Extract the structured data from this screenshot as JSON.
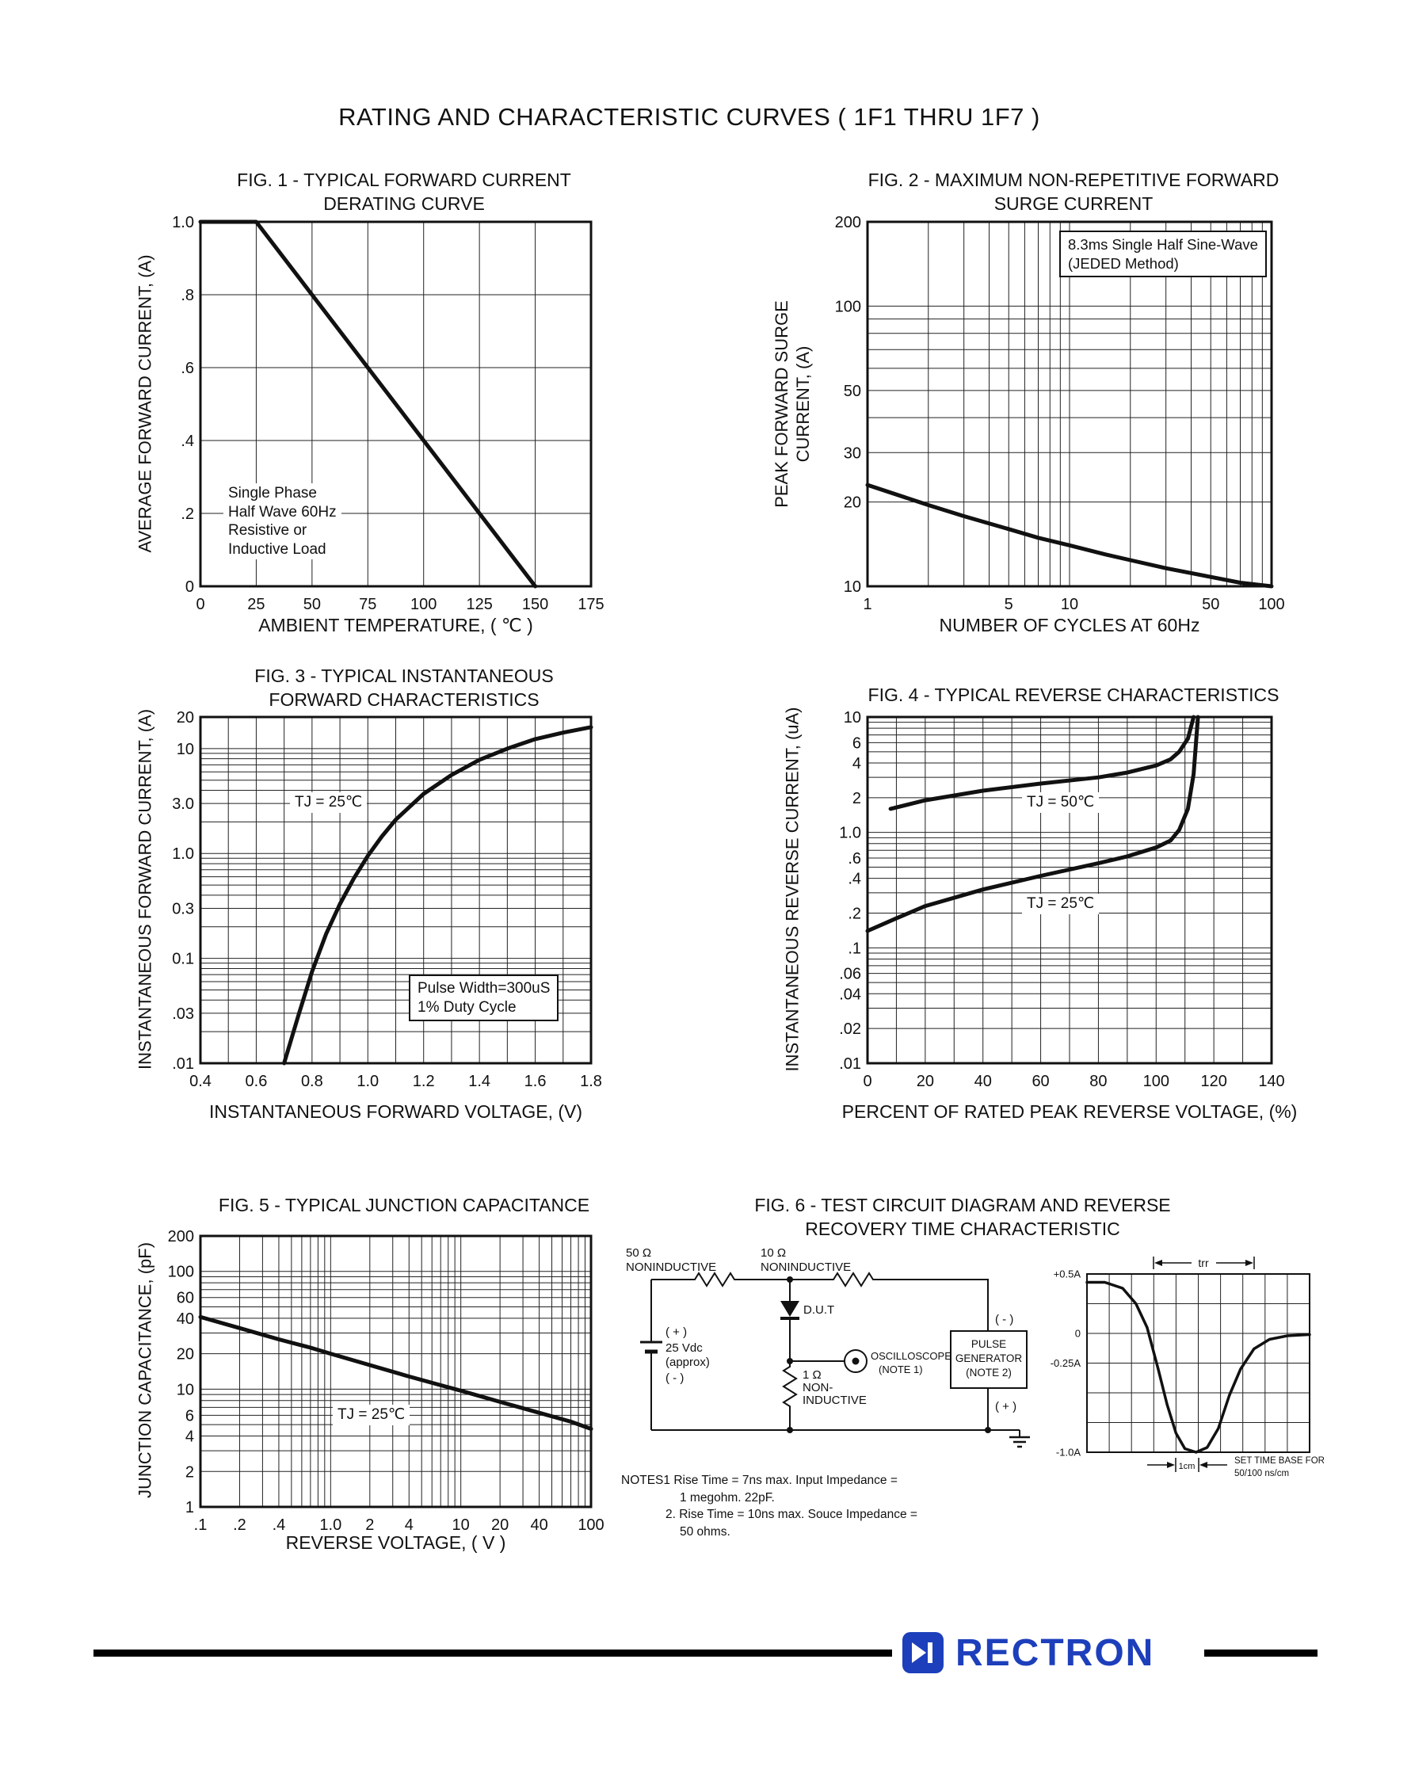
{
  "page": {
    "title": "RATING AND CHARACTERISTIC CURVES ( 1F1 THRU 1F7 )"
  },
  "footer": {
    "brand": "RECTRON",
    "brand_color": "#1d3fbb",
    "bar_color": "#000000",
    "logo_icon": "diode-mark"
  },
  "chart_data": [
    {
      "id": "fig1",
      "type": "line",
      "title": "FIG. 1 - TYPICAL FORWARD CURRENT\nDERATING CURVE",
      "xlabel": "AMBIENT TEMPERATURE, ( ℃ )",
      "ylabel": "AVERAGE FORWARD CURRENT, (A)",
      "x_scale": "linear",
      "y_scale": "linear",
      "xlim": [
        0,
        175
      ],
      "ylim": [
        0,
        1.0
      ],
      "x_grid_step": 25,
      "y_grid_step": 0.2,
      "x_ticks": [
        [
          0,
          "0"
        ],
        [
          25,
          "25"
        ],
        [
          50,
          "50"
        ],
        [
          75,
          "75"
        ],
        [
          100,
          "100"
        ],
        [
          125,
          "125"
        ],
        [
          150,
          "150"
        ],
        [
          175,
          "175"
        ]
      ],
      "y_ticks": [
        [
          1.0,
          "1.0"
        ],
        [
          0.8,
          ".8"
        ],
        [
          0.6,
          ".6"
        ],
        [
          0.4,
          ".4"
        ],
        [
          0.2,
          ".2"
        ],
        [
          0,
          "0"
        ]
      ],
      "series": [
        {
          "name": "average forward current derating",
          "points": [
            [
              0,
              1.0
            ],
            [
              25,
              1.0
            ],
            [
              150,
              0
            ]
          ]
        }
      ],
      "annotations": {
        "load_note": "Single Phase\nHalf Wave 60Hz\nResistive or\nInductive Load"
      }
    },
    {
      "id": "fig2",
      "type": "line",
      "title": "FIG. 2 - MAXIMUM NON-REPETITIVE FORWARD\nSURGE CURRENT",
      "xlabel": "NUMBER OF CYCLES AT 60Hz",
      "ylabel": "PEAK FORWARD SURGE\nCURRENT, (A)",
      "x_scale": "log",
      "y_scale": "log",
      "xlim": [
        1,
        100
      ],
      "ylim": [
        10,
        200
      ],
      "x_ticks": [
        [
          1,
          "1"
        ],
        [
          5,
          "5"
        ],
        [
          10,
          "10"
        ],
        [
          50,
          "50"
        ],
        [
          100,
          "100"
        ]
      ],
      "y_ticks": [
        [
          200,
          "200"
        ],
        [
          100,
          "100"
        ],
        [
          50,
          "50"
        ],
        [
          30,
          "30"
        ],
        [
          20,
          "20"
        ],
        [
          10,
          "10"
        ]
      ],
      "series": [
        {
          "name": "peak forward surge current",
          "points": [
            [
              1,
              23
            ],
            [
              2,
              19.5
            ],
            [
              3,
              17.8
            ],
            [
              5,
              16
            ],
            [
              7,
              14.9
            ],
            [
              10,
              14
            ],
            [
              15,
              13
            ],
            [
              20,
              12.4
            ],
            [
              30,
              11.6
            ],
            [
              50,
              10.8
            ],
            [
              70,
              10.3
            ],
            [
              100,
              10
            ]
          ]
        }
      ],
      "annotations": {
        "method_note": "8.3ms Single Half Sine-Wave\n(JEDED Method)"
      }
    },
    {
      "id": "fig3",
      "type": "line",
      "title": "FIG. 3 - TYPICAL INSTANTANEOUS\nFORWARD CHARACTERISTICS",
      "xlabel": "INSTANTANEOUS FORWARD VOLTAGE, (V)",
      "ylabel": "INSTANTANEOUS FORWARD CURRENT, (A)",
      "x_scale": "linear",
      "y_scale": "log",
      "xlim": [
        0.4,
        1.8
      ],
      "ylim": [
        0.01,
        20
      ],
      "x_grid_step": 0.1,
      "x_ticks": [
        [
          0.4,
          "0.4"
        ],
        [
          0.6,
          "0.6"
        ],
        [
          0.8,
          "0.8"
        ],
        [
          1.0,
          "1.0"
        ],
        [
          1.2,
          "1.2"
        ],
        [
          1.4,
          "1.4"
        ],
        [
          1.6,
          "1.6"
        ],
        [
          1.8,
          "1.8"
        ]
      ],
      "y_ticks": [
        [
          20,
          "20"
        ],
        [
          10,
          "10"
        ],
        [
          3,
          "3.0"
        ],
        [
          1,
          "1.0"
        ],
        [
          0.3,
          "0.3"
        ],
        [
          0.1,
          "0.1"
        ],
        [
          0.03,
          ".03"
        ],
        [
          0.01,
          ".01"
        ]
      ],
      "series": [
        {
          "name": "instantaneous forward current, TJ = 25C",
          "points": [
            [
              0.7,
              0.01
            ],
            [
              0.75,
              0.028
            ],
            [
              0.8,
              0.075
            ],
            [
              0.85,
              0.17
            ],
            [
              0.9,
              0.33
            ],
            [
              0.95,
              0.58
            ],
            [
              1.0,
              0.95
            ],
            [
              1.05,
              1.45
            ],
            [
              1.1,
              2.1
            ],
            [
              1.2,
              3.7
            ],
            [
              1.3,
              5.6
            ],
            [
              1.4,
              7.8
            ],
            [
              1.5,
              10
            ],
            [
              1.6,
              12.3
            ],
            [
              1.7,
              14.2
            ],
            [
              1.8,
              16
            ]
          ]
        }
      ],
      "annotations": {
        "tj_label": "TJ = 25℃",
        "pulse_note": "Pulse Width=300uS\n1% Duty Cycle"
      }
    },
    {
      "id": "fig4",
      "type": "line",
      "title": "FIG. 4 - TYPICAL REVERSE CHARACTERISTICS",
      "xlabel": "PERCENT OF RATED PEAK REVERSE VOLTAGE, (%)",
      "ylabel": "INSTANTANEOUS REVERSE CURRENT, (uA)",
      "x_scale": "linear",
      "y_scale": "log",
      "xlim": [
        0,
        140
      ],
      "ylim": [
        0.01,
        10
      ],
      "x_grid_step": 10,
      "x_ticks": [
        [
          0,
          "0"
        ],
        [
          20,
          "20"
        ],
        [
          40,
          "40"
        ],
        [
          60,
          "60"
        ],
        [
          80,
          "80"
        ],
        [
          100,
          "100"
        ],
        [
          120,
          "120"
        ],
        [
          140,
          "140"
        ]
      ],
      "y_ticks": [
        [
          10,
          "10"
        ],
        [
          6,
          "6"
        ],
        [
          4,
          "4"
        ],
        [
          2,
          "2"
        ],
        [
          1,
          "1.0"
        ],
        [
          0.6,
          ".6"
        ],
        [
          0.4,
          ".4"
        ],
        [
          0.2,
          ".2"
        ],
        [
          0.1,
          ".1"
        ],
        [
          0.06,
          ".06"
        ],
        [
          0.04,
          ".04"
        ],
        [
          0.02,
          ".02"
        ],
        [
          0.01,
          ".01"
        ]
      ],
      "series": [
        {
          "name": "TJ = 50C",
          "points": [
            [
              8,
              1.6
            ],
            [
              20,
              1.9
            ],
            [
              40,
              2.3
            ],
            [
              60,
              2.65
            ],
            [
              80,
              3.0
            ],
            [
              90,
              3.3
            ],
            [
              100,
              3.8
            ],
            [
              105,
              4.3
            ],
            [
              108,
              5
            ],
            [
              111,
              6.5
            ],
            [
              113,
              10
            ]
          ]
        },
        {
          "name": "TJ = 25C",
          "points": [
            [
              0,
              0.14
            ],
            [
              10,
              0.18
            ],
            [
              20,
              0.23
            ],
            [
              40,
              0.32
            ],
            [
              60,
              0.42
            ],
            [
              80,
              0.54
            ],
            [
              90,
              0.62
            ],
            [
              100,
              0.74
            ],
            [
              105,
              0.85
            ],
            [
              108,
              1.05
            ],
            [
              111,
              1.6
            ],
            [
              113,
              3.2
            ],
            [
              114.5,
              10
            ]
          ]
        }
      ],
      "annotations": {
        "tj50_label": "TJ = 50℃",
        "tj25_label": "TJ = 25℃"
      }
    },
    {
      "id": "fig5",
      "type": "line",
      "title": "FIG. 5 - TYPICAL JUNCTION CAPACITANCE",
      "xlabel": "REVERSE VOLTAGE, ( V )",
      "ylabel": "JUNCTION CAPACITANCE, (pF)",
      "x_scale": "log",
      "y_scale": "log",
      "xlim": [
        0.1,
        100
      ],
      "ylim": [
        1,
        200
      ],
      "x_ticks": [
        [
          0.1,
          ".1"
        ],
        [
          0.2,
          ".2"
        ],
        [
          0.4,
          ".4"
        ],
        [
          1,
          "1.0"
        ],
        [
          2,
          "2"
        ],
        [
          4,
          "4"
        ],
        [
          10,
          "10"
        ],
        [
          20,
          "20"
        ],
        [
          40,
          "40"
        ],
        [
          100,
          "100"
        ]
      ],
      "y_ticks": [
        [
          200,
          "200"
        ],
        [
          100,
          "100"
        ],
        [
          60,
          "60"
        ],
        [
          40,
          "40"
        ],
        [
          20,
          "20"
        ],
        [
          10,
          "10"
        ],
        [
          6,
          "6"
        ],
        [
          4,
          "4"
        ],
        [
          2,
          "2"
        ],
        [
          1,
          "1"
        ]
      ],
      "series": [
        {
          "name": "junction capacitance, TJ = 25C",
          "points": [
            [
              0.1,
              41
            ],
            [
              0.2,
              33
            ],
            [
              0.4,
              26.5
            ],
            [
              0.7,
              22.5
            ],
            [
              1,
              20
            ],
            [
              2,
              16
            ],
            [
              4,
              12.8
            ],
            [
              7,
              10.8
            ],
            [
              10,
              9.7
            ],
            [
              20,
              7.8
            ],
            [
              40,
              6.3
            ],
            [
              70,
              5.3
            ],
            [
              100,
              4.6
            ]
          ]
        }
      ],
      "annotations": {
        "tj_label": "TJ = 25℃"
      }
    },
    {
      "id": "fig6",
      "type": "circuit-diagram-with-waveform",
      "title": "FIG. 6 - TEST CIRCUIT DIAGRAM AND REVERSE\nRECOVERY TIME CHARACTERISTIC",
      "circuit": {
        "r50": "50 Ω",
        "r50_sub": "NONINDUCTIVE",
        "r10": "10 Ω",
        "r10_sub": "NONINDUCTIVE",
        "bat_plus": "( + )",
        "bat_v": "25 Vdc",
        "bat_approx": "(approx)",
        "bat_minus": "( - )",
        "dut": "D.U.T",
        "r1": "1 Ω",
        "r1_sub1": "NON-",
        "r1_sub2": "INDUCTIVE",
        "scope1": "OSCILLOSCOPE",
        "scope2": "(NOTE 1)",
        "pg1": "PULSE",
        "pg2": "GENERATOR",
        "pg3": "(NOTE 2)",
        "pg_minus": "( - )",
        "pg_plus": "( + )"
      },
      "waveform": {
        "type": "line",
        "x_scale": "linear",
        "y_scale": "linear",
        "xlim": [
          0,
          10
        ],
        "ylim": [
          -1,
          0.5
        ],
        "x_grid_step": 1,
        "y_grid_step": 0.25,
        "x_ticks": [],
        "y_ticks": [
          [
            0.5,
            "+0.5A"
          ],
          [
            0,
            "0"
          ],
          [
            -0.25,
            "-0.25A"
          ],
          [
            -1,
            "-1.0A"
          ]
        ],
        "stroke": 3.5,
        "frame": 2,
        "series": [
          {
            "name": "reverse recovery current",
            "points": [
              [
                0,
                0.43
              ],
              [
                0.8,
                0.43
              ],
              [
                1.6,
                0.38
              ],
              [
                2.2,
                0.25
              ],
              [
                2.7,
                0.05
              ],
              [
                3.2,
                -0.3
              ],
              [
                3.6,
                -0.6
              ],
              [
                4,
                -0.84
              ],
              [
                4.4,
                -0.97
              ],
              [
                4.9,
                -1
              ],
              [
                5.4,
                -0.96
              ],
              [
                5.9,
                -0.8
              ],
              [
                6.4,
                -0.52
              ],
              [
                6.9,
                -0.3
              ],
              [
                7.5,
                -0.13
              ],
              [
                8.2,
                -0.05
              ],
              [
                9,
                -0.02
              ],
              [
                10,
                -0.01
              ]
            ]
          }
        ],
        "labels": {
          "trr": "trr",
          "cm": "1cm",
          "timebase1": "SET TIME BASE FOR",
          "timebase2": "50/100 ns/cm"
        }
      },
      "notes": {
        "line1": "NOTES1  Rise Time = 7ns max. Input Impedance =",
        "line2": "1 megohm. 22pF.",
        "line3": "2. Rise Time = 10ns max. Souce Impedance =",
        "line4": "50 ohms."
      }
    }
  ]
}
